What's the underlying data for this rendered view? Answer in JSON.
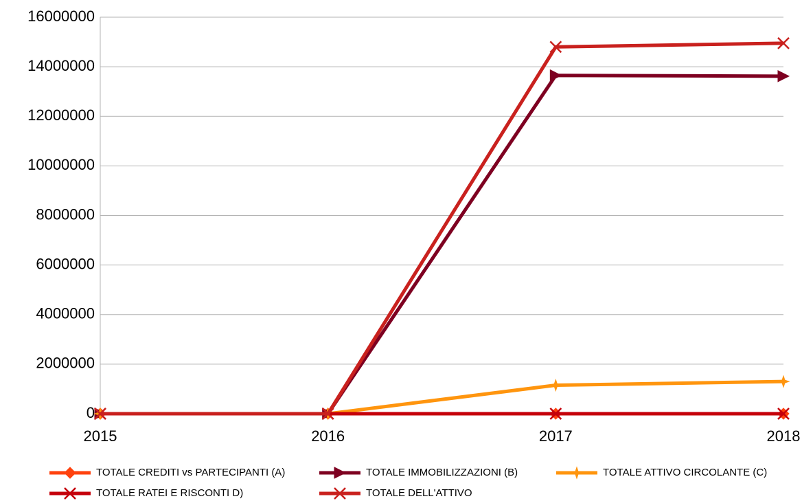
{
  "chart_data": {
    "type": "line",
    "x": [
      2015,
      2016,
      2017,
      2018
    ],
    "xlim": [
      2015,
      2018
    ],
    "xticks": [
      2015,
      2016,
      2017,
      2018
    ],
    "ylim": [
      0,
      16000000
    ],
    "yticks": [
      0,
      2000000,
      4000000,
      6000000,
      8000000,
      10000000,
      12000000,
      14000000,
      16000000
    ],
    "grid": true,
    "legend": "bottom",
    "series": [
      {
        "name": "TOTALE CREDITI vs PARTECIPANTI (A)",
        "color": "#ff420e",
        "marker": "diamond",
        "values": [
          0,
          0,
          0,
          0
        ]
      },
      {
        "name": "TOTALE IMMOBILIZZAZIONI (B)",
        "color": "#7e0021",
        "marker": "triangle",
        "values": [
          0,
          0,
          13650000,
          13620000
        ]
      },
      {
        "name": "TOTALE ATTIVO CIRCOLANTE (C)",
        "color": "#ff950e",
        "marker": "star",
        "values": [
          0,
          0,
          1150000,
          1300000
        ]
      },
      {
        "name": "TOTALE RATEI E RISCONTI  D)",
        "color": "#c5000b",
        "marker": "x",
        "values": [
          0,
          0,
          0,
          0
        ]
      },
      {
        "name": "TOTALE DELL'ATTIVO",
        "color": "#c9211e",
        "marker": "x",
        "values": [
          0,
          0,
          14800000,
          14950000
        ]
      }
    ]
  }
}
